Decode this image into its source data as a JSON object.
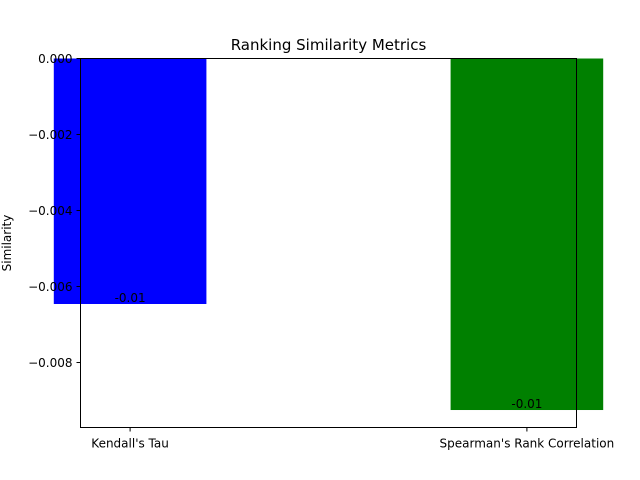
{
  "chart_data": {
    "type": "bar",
    "title": "Ranking Similarity Metrics",
    "xlabel": "",
    "ylabel": "Similarity",
    "categories": [
      "Kendall's Tau",
      "Spearman's Rank Correlation"
    ],
    "values": [
      -0.00646,
      -0.00925
    ],
    "bar_colors": [
      "#0000ff",
      "#008000"
    ],
    "data_labels": [
      "-0.01",
      "-0.01"
    ],
    "ylim": [
      -0.00971,
      0.0
    ],
    "yticks": [
      0.0,
      -0.002,
      -0.004,
      -0.006,
      -0.008
    ],
    "ytick_labels": [
      "0.000",
      "−0.002",
      "−0.004",
      "−0.006",
      "−0.008"
    ],
    "grid": false,
    "legend": "none"
  }
}
